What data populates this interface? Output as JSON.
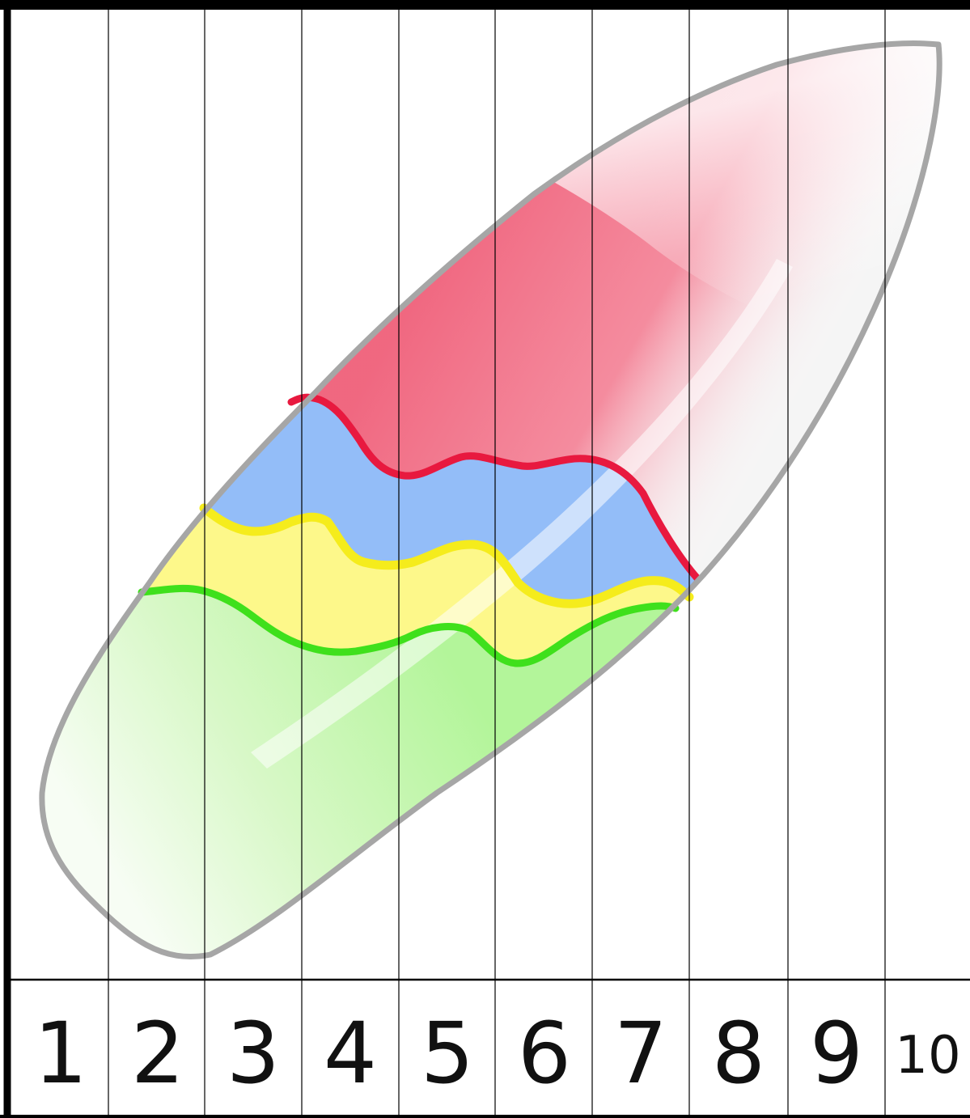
{
  "puzzle": {
    "picture": "surfboard",
    "strip_numbers": [
      "1",
      "2",
      "3",
      "4",
      "5",
      "6",
      "7",
      "8",
      "9",
      "10"
    ]
  },
  "colors": {
    "outline": "#a6a6a6",
    "board": "#f5f5f5",
    "red": "#f0607a",
    "red_line": "#e8193f",
    "blue": "#93bdf8",
    "yellow": "#fdf88a",
    "yellow_line": "#f5ec1c",
    "green": "#b3f59a",
    "green_line": "#3fe01c",
    "frame": "#000000"
  }
}
